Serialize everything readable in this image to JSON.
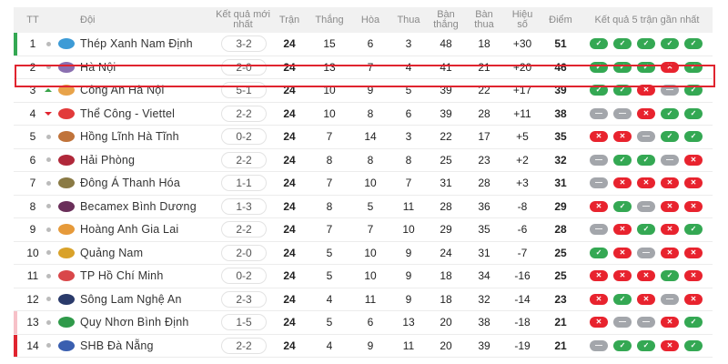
{
  "header": {
    "rank": "TT",
    "team": "Đội",
    "latest_result": "Kết quả mới nhất",
    "played": "Trận",
    "won": "Thắng",
    "drawn": "Hòa",
    "lost": "Thua",
    "goals_for": "Bàn thắng",
    "goals_against": "Bàn thua",
    "goal_diff": "Hiệu số",
    "points": "Điểm",
    "form": "Kết quả 5 trận gần nhất"
  },
  "colors": {
    "win": "#34a853",
    "loss": "#e8232e",
    "draw": "#a3a6ab",
    "champion": "#34a853",
    "relegation_playoff": "#f7c1c8",
    "relegation": "#e0242f",
    "highlight": "#e0242f"
  },
  "highlighted_team": "Hà Nội",
  "rows": [
    {
      "rank": "1",
      "trend": "same",
      "team": "Thép Xanh Nam Định",
      "logo": "#3d9bd6",
      "latest": "3-2",
      "played": "24",
      "won": "15",
      "drawn": "6",
      "lost": "3",
      "gf": "48",
      "ga": "18",
      "gd": "+30",
      "pts": "51",
      "form": [
        "W",
        "W",
        "W",
        "W",
        "W"
      ],
      "zone": "champion"
    },
    {
      "rank": "2",
      "trend": "same",
      "team": "Hà Nội",
      "logo": "#8a6fb0",
      "latest": "2-0",
      "played": "24",
      "won": "13",
      "drawn": "7",
      "lost": "4",
      "gf": "41",
      "ga": "21",
      "gd": "+20",
      "pts": "46",
      "form": [
        "W",
        "W",
        "W",
        "L",
        "W"
      ],
      "zone": ""
    },
    {
      "rank": "3",
      "trend": "up",
      "team": "Công An Hà Nội",
      "logo": "#e8a34a",
      "latest": "5-1",
      "played": "24",
      "won": "10",
      "drawn": "9",
      "lost": "5",
      "gf": "39",
      "ga": "22",
      "gd": "+17",
      "pts": "39",
      "form": [
        "W",
        "W",
        "L",
        "D",
        "W"
      ],
      "zone": ""
    },
    {
      "rank": "4",
      "trend": "down",
      "team": "Thể Công - Viettel",
      "logo": "#e23a3a",
      "latest": "2-2",
      "played": "24",
      "won": "10",
      "drawn": "8",
      "lost": "6",
      "gf": "39",
      "ga": "28",
      "gd": "+11",
      "pts": "38",
      "form": [
        "D",
        "D",
        "L",
        "W",
        "W"
      ],
      "zone": ""
    },
    {
      "rank": "5",
      "trend": "same",
      "team": "Hồng Lĩnh Hà Tĩnh",
      "logo": "#c0733a",
      "latest": "0-2",
      "played": "24",
      "won": "7",
      "drawn": "14",
      "lost": "3",
      "gf": "22",
      "ga": "17",
      "gd": "+5",
      "pts": "35",
      "form": [
        "L",
        "L",
        "D",
        "W",
        "W"
      ],
      "zone": ""
    },
    {
      "rank": "6",
      "trend": "same",
      "team": "Hải Phòng",
      "logo": "#b0283a",
      "latest": "2-2",
      "played": "24",
      "won": "8",
      "drawn": "8",
      "lost": "8",
      "gf": "25",
      "ga": "23",
      "gd": "+2",
      "pts": "32",
      "form": [
        "D",
        "W",
        "W",
        "D",
        "L"
      ],
      "zone": ""
    },
    {
      "rank": "7",
      "trend": "same",
      "team": "Đông Á Thanh Hóa",
      "logo": "#8a7a45",
      "latest": "1-1",
      "played": "24",
      "won": "7",
      "drawn": "10",
      "lost": "7",
      "gf": "31",
      "ga": "28",
      "gd": "+3",
      "pts": "31",
      "form": [
        "D",
        "L",
        "L",
        "L",
        "L"
      ],
      "zone": ""
    },
    {
      "rank": "8",
      "trend": "same",
      "team": "Becamex Bình Dương",
      "logo": "#6a2f5a",
      "latest": "1-3",
      "played": "24",
      "won": "8",
      "drawn": "5",
      "lost": "11",
      "gf": "28",
      "ga": "36",
      "gd": "-8",
      "pts": "29",
      "form": [
        "L",
        "W",
        "D",
        "L",
        "L"
      ],
      "zone": ""
    },
    {
      "rank": "9",
      "trend": "same",
      "team": "Hoàng Anh Gia Lai",
      "logo": "#e69a3a",
      "latest": "2-2",
      "played": "24",
      "won": "7",
      "drawn": "7",
      "lost": "10",
      "gf": "29",
      "ga": "35",
      "gd": "-6",
      "pts": "28",
      "form": [
        "D",
        "L",
        "W",
        "L",
        "W"
      ],
      "zone": ""
    },
    {
      "rank": "10",
      "trend": "same",
      "team": "Quảng Nam",
      "logo": "#d9a22a",
      "latest": "2-0",
      "played": "24",
      "won": "5",
      "drawn": "10",
      "lost": "9",
      "gf": "24",
      "ga": "31",
      "gd": "-7",
      "pts": "25",
      "form": [
        "W",
        "L",
        "D",
        "L",
        "L"
      ],
      "zone": ""
    },
    {
      "rank": "11",
      "trend": "same",
      "team": "TP Hồ Chí Minh",
      "logo": "#d9474a",
      "latest": "0-2",
      "played": "24",
      "won": "5",
      "drawn": "10",
      "lost": "9",
      "gf": "18",
      "ga": "34",
      "gd": "-16",
      "pts": "25",
      "form": [
        "L",
        "L",
        "L",
        "W",
        "L"
      ],
      "zone": ""
    },
    {
      "rank": "12",
      "trend": "same",
      "team": "Sông Lam Nghệ An",
      "logo": "#2a3a6a",
      "latest": "2-3",
      "played": "24",
      "won": "4",
      "drawn": "11",
      "lost": "9",
      "gf": "18",
      "ga": "32",
      "gd": "-14",
      "pts": "23",
      "form": [
        "L",
        "W",
        "L",
        "D",
        "L"
      ],
      "zone": ""
    },
    {
      "rank": "13",
      "trend": "same",
      "team": "Quy Nhơn Bình Định",
      "logo": "#2f9a4a",
      "latest": "1-5",
      "played": "24",
      "won": "5",
      "drawn": "6",
      "lost": "13",
      "gf": "20",
      "ga": "38",
      "gd": "-18",
      "pts": "21",
      "form": [
        "L",
        "D",
        "D",
        "L",
        "W"
      ],
      "zone": "relegation_playoff"
    },
    {
      "rank": "14",
      "trend": "same",
      "team": "SHB Đà Nẵng",
      "logo": "#3a5fb0",
      "latest": "2-2",
      "played": "24",
      "won": "4",
      "drawn": "9",
      "lost": "11",
      "gf": "20",
      "ga": "39",
      "gd": "-19",
      "pts": "21",
      "form": [
        "D",
        "W",
        "W",
        "L",
        "W"
      ],
      "zone": "relegation"
    }
  ]
}
